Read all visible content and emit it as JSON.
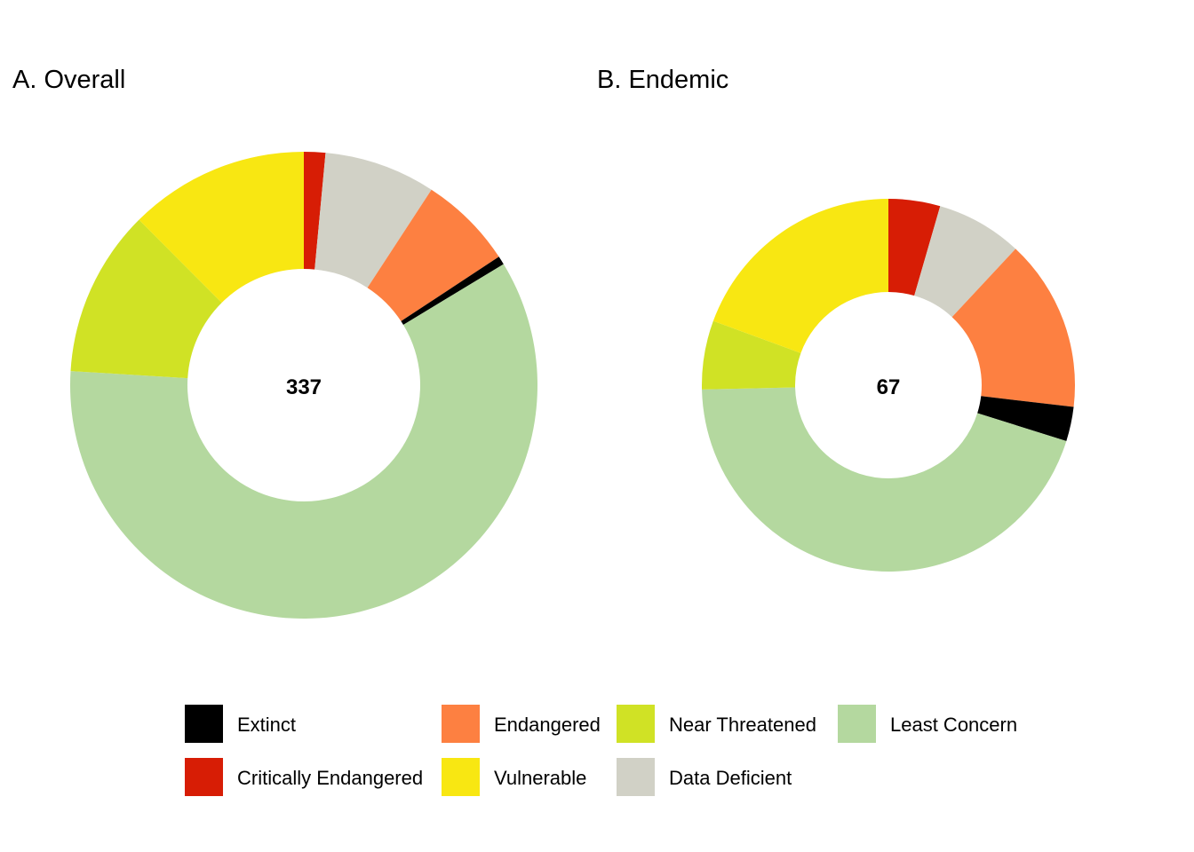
{
  "chart_data": [
    {
      "type": "pie",
      "title": "A. Overall",
      "total": "337",
      "slices": [
        {
          "category": "Critically Endangered",
          "value": 5
        },
        {
          "category": "Data Deficient",
          "value": 26
        },
        {
          "category": "Endangered",
          "value": 22
        },
        {
          "category": "Extinct",
          "value": 2
        },
        {
          "category": "Least Concern",
          "value": 201
        },
        {
          "category": "Near Threatened",
          "value": 39
        },
        {
          "category": "Vulnerable",
          "value": 42
        }
      ]
    },
    {
      "type": "pie",
      "title": "B. Endemic",
      "total": "67",
      "slices": [
        {
          "category": "Critically Endangered",
          "value": 3
        },
        {
          "category": "Data Deficient",
          "value": 5
        },
        {
          "category": "Endangered",
          "value": 10
        },
        {
          "category": "Extinct",
          "value": 2
        },
        {
          "category": "Least Concern",
          "value": 30
        },
        {
          "category": "Near Threatened",
          "value": 4
        },
        {
          "category": "Vulnerable",
          "value": 13
        }
      ]
    }
  ],
  "legend": {
    "placement": "bottom",
    "items": [
      {
        "label": "Extinct",
        "color": "#000000"
      },
      {
        "label": "Critically Endangered",
        "color": "#d71d05"
      },
      {
        "label": "Endangered",
        "color": "#fd8041"
      },
      {
        "label": "Vulnerable",
        "color": "#f8e712"
      },
      {
        "label": "Near Threatened",
        "color": "#d0e225"
      },
      {
        "label": "Data Deficient",
        "color": "#d1d1c6"
      },
      {
        "label": "Least Concern",
        "color": "#b4d89f"
      }
    ]
  }
}
